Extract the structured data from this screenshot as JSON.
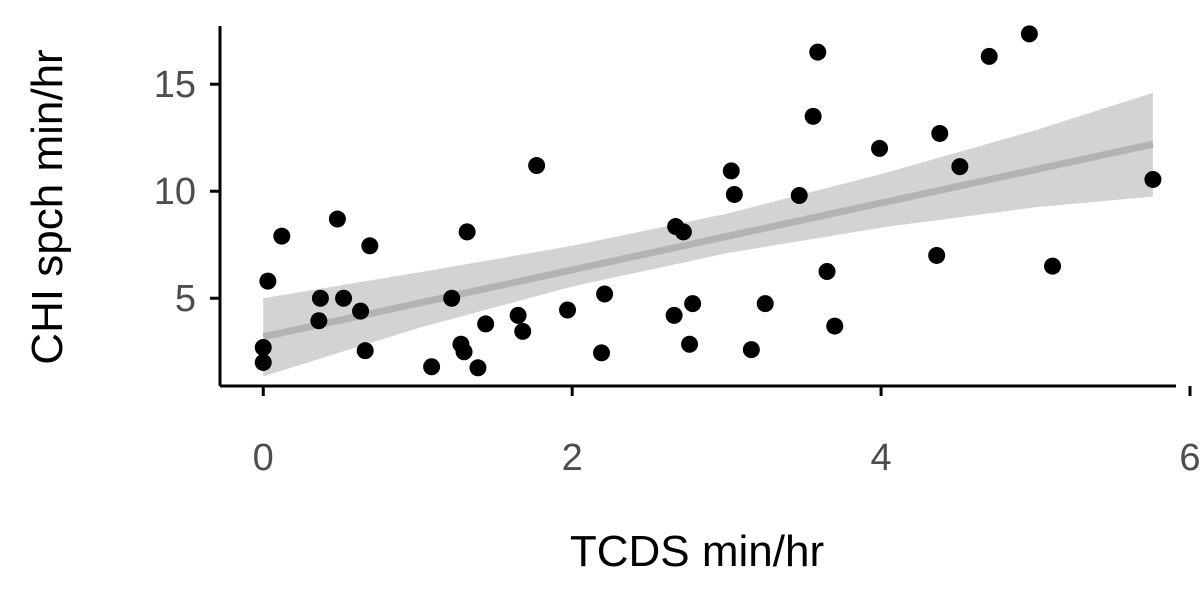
{
  "chart_data": {
    "type": "scatter",
    "title": "",
    "xlabel": "TCDS min/hr",
    "ylabel": "CHI spch min/hr",
    "xlim": [
      -0.28,
      6.0
    ],
    "ylim": [
      0.9,
      18.0
    ],
    "x_ticks": [
      0,
      2,
      4,
      6
    ],
    "x_tick_labels": [
      "0",
      "2",
      "4",
      "6"
    ],
    "y_ticks": [
      5,
      10,
      15
    ],
    "y_tick_labels": [
      "5",
      "10",
      "15"
    ],
    "grid": false,
    "legend": "none",
    "colors": {
      "points": "#000000",
      "fit_line": "#b3b3b3",
      "confidence_band": "#d3d3d3",
      "axis": "#000000",
      "tick_text": "#4d4d4d"
    },
    "series": [
      {
        "points": [
          [
            0.0,
            2.0
          ],
          [
            0.0,
            2.7
          ],
          [
            0.03,
            5.8
          ],
          [
            0.12,
            7.9
          ],
          [
            0.36,
            3.95
          ],
          [
            0.37,
            5.0
          ],
          [
            0.48,
            8.7
          ],
          [
            0.52,
            5.0
          ],
          [
            0.63,
            4.4
          ],
          [
            0.66,
            2.55
          ],
          [
            0.69,
            7.45
          ],
          [
            1.09,
            1.8
          ],
          [
            1.22,
            5.0
          ],
          [
            1.28,
            2.85
          ],
          [
            1.3,
            2.5
          ],
          [
            1.32,
            8.1
          ],
          [
            1.39,
            1.75
          ],
          [
            1.44,
            3.8
          ],
          [
            1.65,
            4.2
          ],
          [
            1.68,
            3.45
          ],
          [
            1.77,
            11.2
          ],
          [
            1.97,
            4.45
          ],
          [
            2.19,
            2.45
          ],
          [
            2.21,
            5.2
          ],
          [
            2.66,
            4.2
          ],
          [
            2.67,
            8.35
          ],
          [
            2.72,
            8.1
          ],
          [
            2.76,
            2.85
          ],
          [
            2.78,
            4.75
          ],
          [
            3.03,
            10.95
          ],
          [
            3.05,
            9.85
          ],
          [
            3.16,
            2.6
          ],
          [
            3.25,
            4.75
          ],
          [
            3.47,
            9.8
          ],
          [
            3.56,
            13.5
          ],
          [
            3.59,
            16.5
          ],
          [
            3.65,
            6.25
          ],
          [
            3.7,
            3.7
          ],
          [
            3.99,
            12.0
          ],
          [
            4.36,
            7.0
          ],
          [
            4.38,
            12.7
          ],
          [
            4.51,
            11.15
          ],
          [
            4.7,
            16.3
          ],
          [
            4.96,
            17.35
          ],
          [
            5.11,
            6.5
          ],
          [
            5.76,
            10.55
          ]
        ]
      }
    ],
    "fit": {
      "x": [
        0.0,
        5.76
      ],
      "y": [
        3.2,
        12.2
      ]
    },
    "confidence_band": {
      "x": [
        0.0,
        1.0,
        2.0,
        3.0,
        4.0,
        5.0,
        5.76
      ],
      "lower": [
        1.35,
        3.6,
        5.55,
        7.1,
        8.3,
        9.25,
        9.75
      ],
      "upper": [
        5.0,
        6.2,
        7.45,
        8.95,
        10.8,
        12.85,
        14.6
      ]
    }
  }
}
